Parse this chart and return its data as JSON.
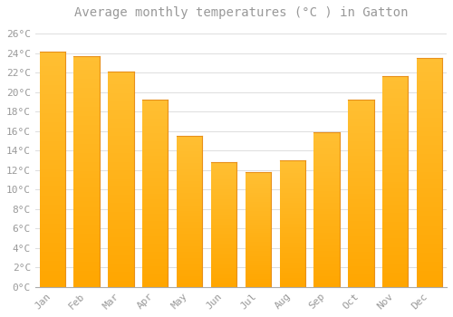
{
  "title": "Average monthly temperatures (°C ) in Gatton",
  "months": [
    "Jan",
    "Feb",
    "Mar",
    "Apr",
    "May",
    "Jun",
    "Jul",
    "Aug",
    "Sep",
    "Oct",
    "Nov",
    "Dec"
  ],
  "values": [
    24.1,
    23.7,
    22.1,
    19.2,
    15.5,
    12.8,
    11.8,
    13.0,
    15.9,
    19.2,
    21.6,
    23.5
  ],
  "bar_color_top": "#FFB733",
  "bar_color_bottom": "#FFA500",
  "bar_edge_color": "#E8901A",
  "background_color": "#FFFFFF",
  "grid_color": "#DDDDDD",
  "text_color": "#999999",
  "ylim": [
    0,
    27
  ],
  "yticks": [
    0,
    2,
    4,
    6,
    8,
    10,
    12,
    14,
    16,
    18,
    20,
    22,
    24,
    26
  ],
  "ytick_labels": [
    "0°C",
    "2°C",
    "4°C",
    "6°C",
    "8°C",
    "10°C",
    "12°C",
    "14°C",
    "16°C",
    "18°C",
    "20°C",
    "22°C",
    "24°C",
    "26°C"
  ],
  "title_fontsize": 10,
  "tick_fontsize": 8,
  "font_family": "monospace",
  "bar_width": 0.75
}
